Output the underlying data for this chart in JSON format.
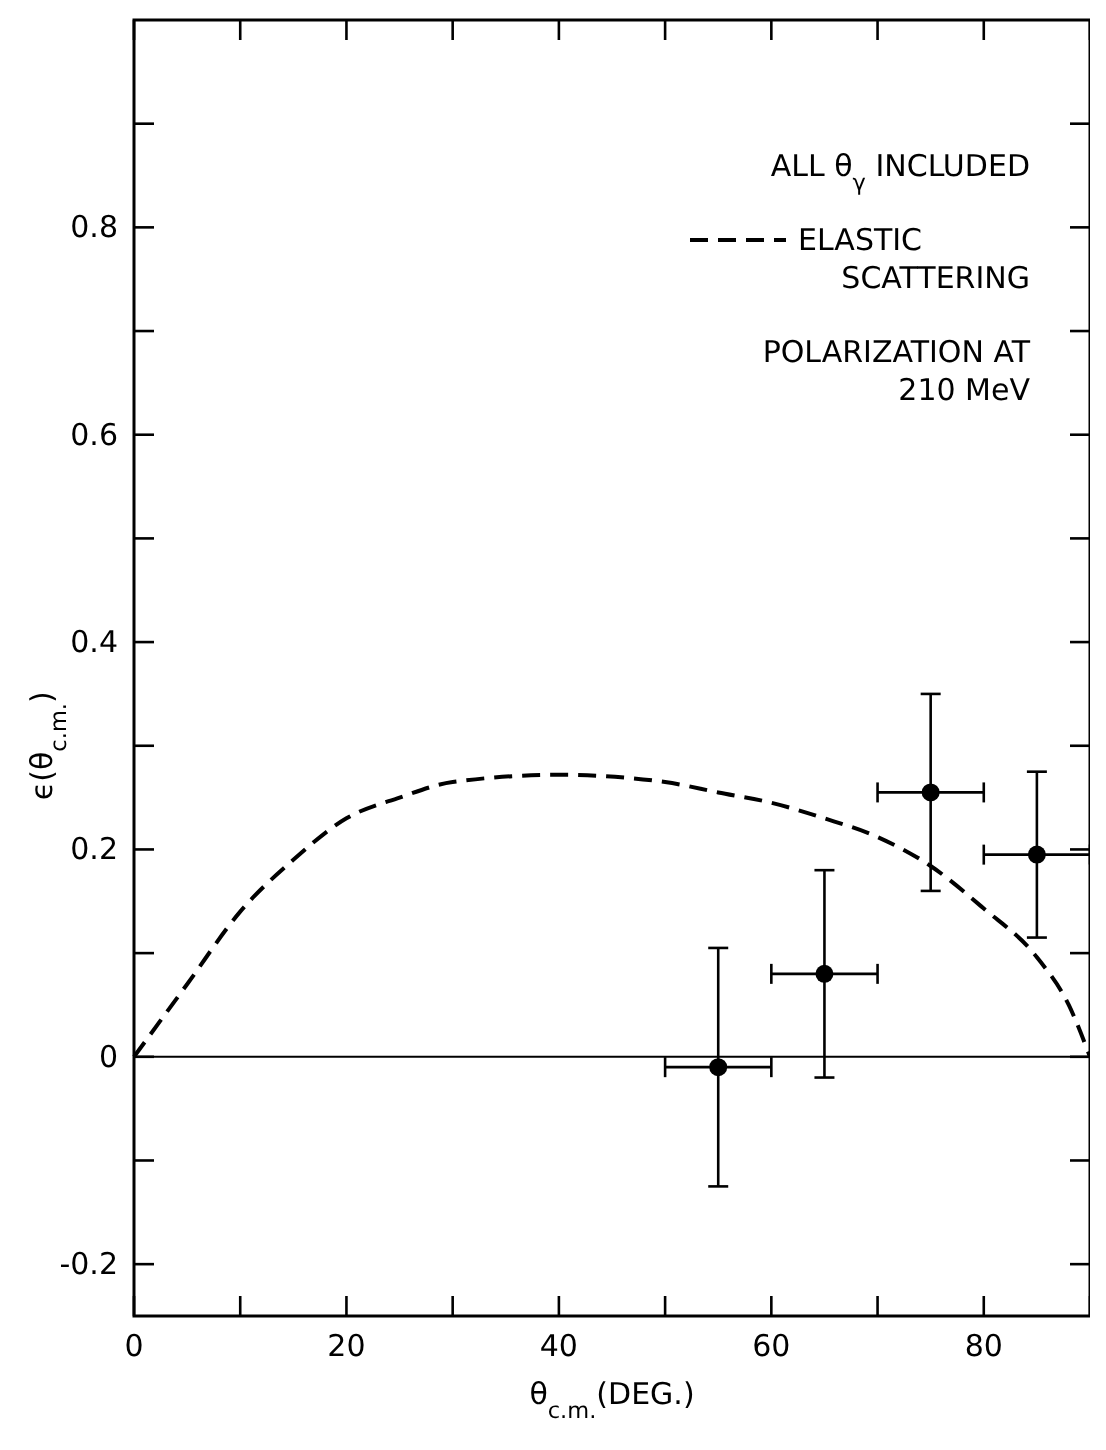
{
  "chart_data": {
    "type": "scatter",
    "xlabel": "θ$_{c.m.}$(DEG.)",
    "ylabel": "ϵ(θ$_{c.m.}$)",
    "xlim": [
      0,
      90
    ],
    "ylim": [
      -0.25,
      1.0
    ],
    "xticks": [
      0,
      {
        "value": 10,
        "label": null
      },
      20,
      {
        "value": 30,
        "label": null
      },
      40,
      {
        "value": 50,
        "label": null
      },
      60,
      {
        "value": 70,
        "label": null
      },
      80,
      {
        "value": 90,
        "label": null
      }
    ],
    "yticks": [
      -0.2,
      {
        "value": -0.1,
        "label": null
      },
      0,
      {
        "value": 0.1,
        "label": null
      },
      0.2,
      {
        "value": 0.3,
        "label": null
      },
      0.4,
      {
        "value": 0.5,
        "label": null
      },
      0.6,
      {
        "value": 0.7,
        "label": null
      },
      0.8,
      {
        "value": 0.9,
        "label": null
      }
    ],
    "grid": false,
    "legend": "top right",
    "series": [
      {
        "color": "#000000",
        "marker": "circle",
        "x": [
          55,
          65,
          75,
          85
        ],
        "values": [
          -0.01,
          0.08,
          0.255,
          0.195
        ],
        "errors": [
          0.115,
          0.1,
          0.095,
          0.08
        ],
        "xerrors": [
          5,
          5,
          5,
          5
        ]
      },
      {
        "type": "line",
        "name": "ELASTIC SCATTERING",
        "color": "#000000",
        "line_style": "dashed",
        "x": [
          0,
          5,
          10,
          15,
          20,
          25,
          30,
          40,
          50,
          55,
          60,
          65,
          70,
          75,
          80,
          85,
          88,
          90
        ],
        "values": [
          0,
          0.07,
          0.14,
          0.19,
          0.23,
          0.25,
          0.265,
          0.272,
          0.265,
          0.255,
          0.245,
          0.23,
          0.212,
          0.184,
          0.143,
          0.096,
          0.05,
          0
        ]
      }
    ],
    "ref_lines": [
      {
        "axis": "y",
        "value": 0,
        "color": "#000000",
        "line_style": "solid"
      }
    ],
    "annotations": [
      "ALL θ$_{γ}$ INCLUDED",
      "POLARIZATION AT 210 MeV"
    ]
  }
}
